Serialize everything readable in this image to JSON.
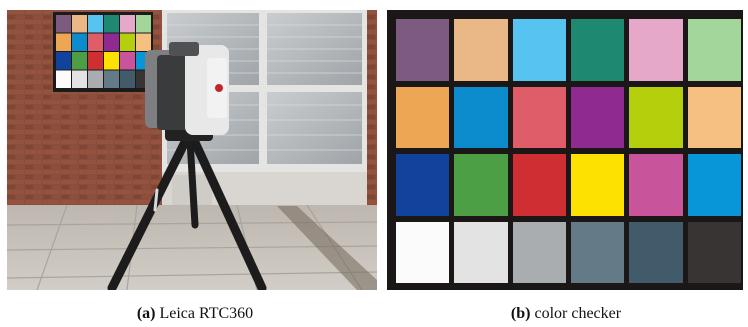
{
  "captions": {
    "a": {
      "label": "(a)",
      "text": "Leica RTC360"
    },
    "b": {
      "label": "(b)",
      "text": "color checker"
    }
  },
  "photo_a": {
    "colors": {
      "brick": "#8a4d3c",
      "brick_dark": "#6e3a2d",
      "mortar": "#a07a66",
      "window_frame": "#e6e6e4",
      "glass": "#b8bcbf",
      "pavement": "#c9c4bd",
      "scanner_body": "#3a3b3d",
      "scanner_white": "#e8e8e8",
      "tripod": "#1c1c1c"
    }
  },
  "color_checker": {
    "frame_color": "#1a1716",
    "rows": [
      [
        "#7d5a80",
        "#e9b886",
        "#56c3f0",
        "#1f8870",
        "#e6a8c8",
        "#a3d69b"
      ],
      [
        "#eda653",
        "#0c8ccc",
        "#df5c69",
        "#8e2a90",
        "#b6cf0d",
        "#f5c080"
      ],
      [
        "#11439c",
        "#4d9f45",
        "#cf2f33",
        "#fde100",
        "#c8559c",
        "#0896d8"
      ],
      [
        "#fbfbfb",
        "#e3e3e3",
        "#a9adaf",
        "#657a87",
        "#415b6b",
        "#383434"
      ]
    ]
  }
}
